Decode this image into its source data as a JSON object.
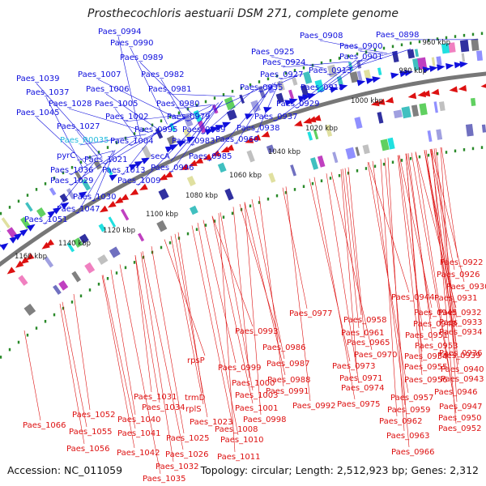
{
  "title": "Prosthecochloris aestuarii DSM 271, complete genome",
  "footer": {
    "accession": "Accession: NC_011059",
    "summary": "Topology: circular; Length: 2,512,923 bp; Genes: 2,312"
  },
  "colors": {
    "forward_genes": "#1010dd",
    "reverse_genes": "#dd1111",
    "rna_highlight": "#22bbdd",
    "backbone": "#777777",
    "tick": "#2a8a2a"
  },
  "scale_labels": [
    "960 kbp",
    "980 kbp",
    "1000 kbp",
    "1020 kbp",
    "1040 kbp",
    "1060 kbp",
    "1080 kbp",
    "1100 kbp",
    "1120 kbp",
    "1140 kbp",
    "1160 kbp"
  ],
  "forward_labels": [
    "Paes_0994",
    "Paes_0990",
    "Paes_0989",
    "Paes_1039",
    "Paes_1007",
    "Paes_0982",
    "Paes_1037",
    "Paes_1006",
    "Paes_0981",
    "Paes_1028",
    "Paes_1005",
    "Paes_0980",
    "Paes_1045",
    "Paes_1002",
    "Paes_0979",
    "Paes_1027",
    "Paes_0995",
    "Paes_0969",
    "Paes_R0035",
    "Paes_1004",
    "Paes_0983",
    "pyrC",
    "secA",
    "Paes_0985",
    "Paes_1021",
    "Paes_1036",
    "Paes_1013",
    "Paes_0996",
    "Paes_1029",
    "Paes_1009",
    "Paes_1030",
    "Paes_1047",
    "Paes_1051",
    "Paes_0908",
    "Paes_0898",
    "Paes_0900",
    "Paes_0901",
    "Paes_0925",
    "Paes_0924",
    "Paes_0913",
    "Paes_0927",
    "Paes_0935",
    "Paes_0918",
    "Paes_0929",
    "Paes_0937",
    "Paes_0938",
    "Paes_0960"
  ],
  "reverse_labels": [
    "Paes_0922",
    "Paes_0926",
    "Paes_0930",
    "Paes_0944",
    "Paes_0931",
    "Paes_0977",
    "Paes_0945",
    "Paes_0932",
    "Paes_0958",
    "Paes_0948",
    "Paes_0933",
    "Paes_0993",
    "Paes_0961",
    "Paes_0951",
    "Paes_0934",
    "Paes_0986",
    "Paes_0965",
    "Paes_0953",
    "Paes_0936",
    "Paes_0970",
    "Paes_0954",
    "Paes_0939",
    "Paes_0987",
    "Paes_0973",
    "Paes_0955",
    "Paes_0940",
    "Paes_0999",
    "Paes_0988",
    "Paes_0971",
    "Paes_0956",
    "Paes_0943",
    "rpsP",
    "Paes_1000",
    "Paes_0991",
    "Paes_0974",
    "Paes_0946",
    "Paes_1031",
    "trmD",
    "Paes_1003",
    "Paes_0957",
    "Paes_0947",
    "Paes_1034",
    "rplS",
    "Paes_0975",
    "Paes_1052",
    "Paes_1040",
    "Paes_1023",
    "Paes_1001",
    "Paes_0998",
    "Paes_0992",
    "Paes_0959",
    "Paes_0950",
    "Paes_1066",
    "Paes_1055",
    "Paes_1041",
    "Paes_1008",
    "Paes_0962",
    "Paes_0952",
    "Paes_1025",
    "Paes_1010",
    "Paes_0963",
    "Paes_1056",
    "Paes_1042",
    "Paes_1026",
    "Paes_1011",
    "Paes_0966",
    "Paes_1032",
    "Paes_1035"
  ]
}
